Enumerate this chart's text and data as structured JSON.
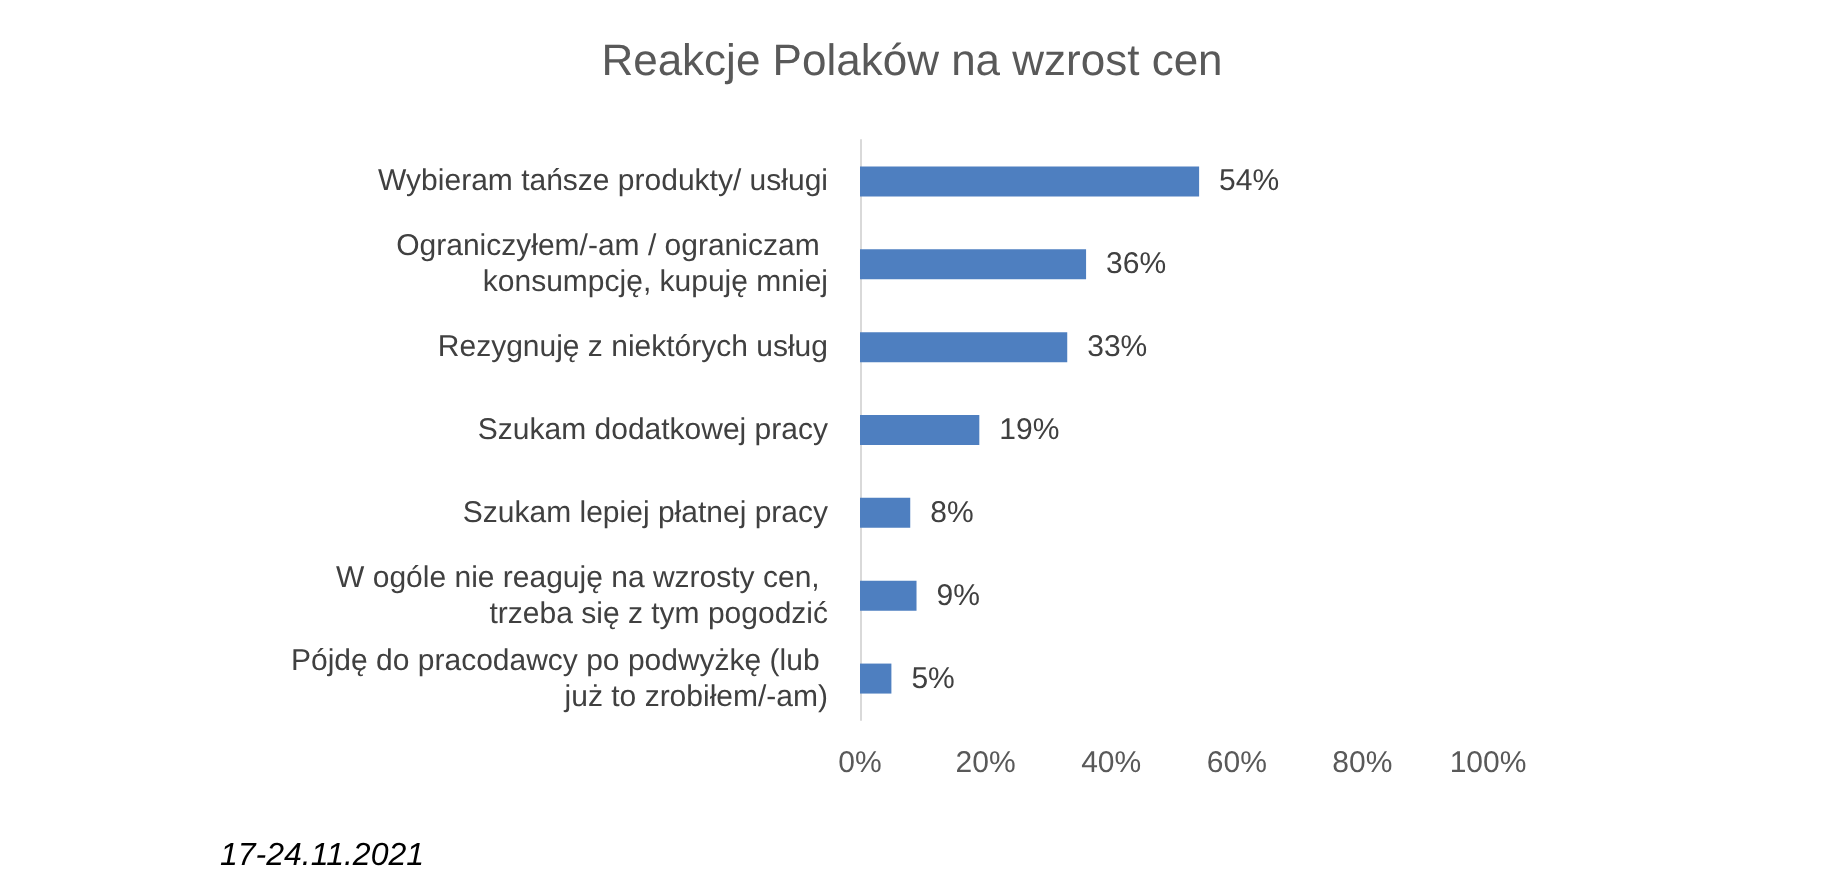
{
  "chart_data": {
    "type": "bar",
    "orientation": "horizontal",
    "title": "Reakcje Polaków na wzrost cen",
    "categories": [
      "Wybieram tańsze produkty/ usługi",
      "Ograniczyłem/-am / ograniczam konsumpcję, kupuję mniej",
      "Rezygnuję z niektórych usług",
      "Szukam dodatkowej pracy",
      "Szukam lepiej płatnej pracy",
      "W ogóle nie reaguję na wzrosty cen, trzeba się z tym pogodzić",
      "Pójdę do pracodawcy po podwyżkę (lub już to zrobiłem/-am)"
    ],
    "values": [
      54,
      36,
      33,
      19,
      8,
      9,
      5
    ],
    "value_labels": [
      "54%",
      "36%",
      "33%",
      "19%",
      "8%",
      "9%",
      "5%"
    ],
    "color": "#4e7fc0",
    "xlim": [
      0,
      100
    ],
    "xticks": [
      {
        "value": 0,
        "label": "0%"
      },
      {
        "value": 20,
        "label": "20%"
      },
      {
        "value": 40,
        "label": "40%"
      },
      {
        "value": 60,
        "label": "60%"
      },
      {
        "value": 80,
        "label": "80%"
      },
      {
        "value": 100,
        "label": "100%"
      }
    ],
    "grid": false,
    "annotations": [
      "17-24.11.2021"
    ]
  }
}
